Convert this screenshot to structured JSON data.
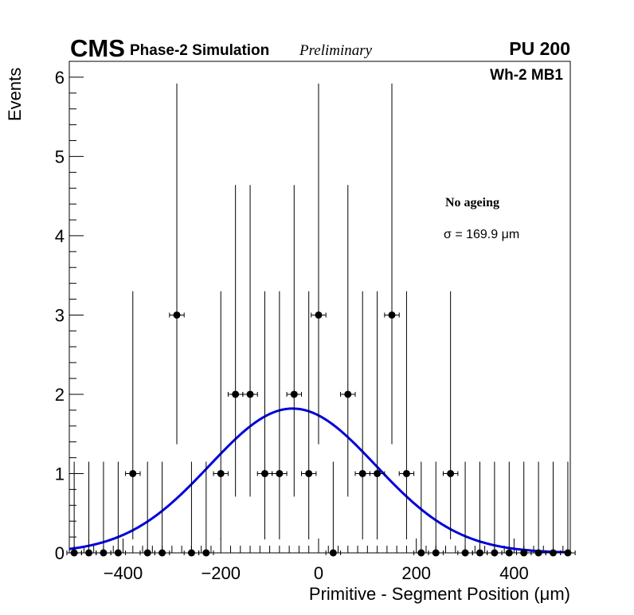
{
  "header": {
    "experiment": "CMS",
    "subtitle": "Phase-2 Simulation",
    "status": "Preliminary",
    "pileup": "PU 200",
    "chamber": "Wh-2 MB1"
  },
  "legend": {
    "condition": "No ageing",
    "sigma_label": "σ = 169.9 μm"
  },
  "chart_data": {
    "type": "scatter",
    "title": "",
    "xlabel": "Primitive - Segment Position (μm)",
    "ylabel": "Events",
    "xlim": [
      -510,
      515
    ],
    "ylim": [
      0,
      6.2
    ],
    "xticks": [
      -400,
      -200,
      0,
      200,
      400
    ],
    "xtick_labels": [
      "−400",
      "−200",
      "0",
      "200",
      "400"
    ],
    "yticks": [
      0,
      1,
      2,
      3,
      4,
      5,
      6
    ],
    "ytick_labels": [
      "0",
      "1",
      "2",
      "3",
      "4",
      "5",
      "6"
    ],
    "bin_halfwidth": 15,
    "series": [
      {
        "name": "No ageing",
        "x": [
          -500,
          -470,
          -440,
          -410,
          -380,
          -350,
          -320,
          -290,
          -260,
          -230,
          -200,
          -170,
          -140,
          -110,
          -80,
          -50,
          -20,
          0,
          30,
          60,
          90,
          120,
          150,
          180,
          210,
          240,
          270,
          300,
          330,
          360,
          390,
          420,
          450,
          480,
          510
        ],
        "y": [
          0,
          0,
          0,
          0,
          1,
          0,
          0,
          3,
          0,
          0,
          1,
          2,
          2,
          1,
          1,
          2,
          1,
          3,
          0,
          2,
          1,
          1,
          3,
          1,
          0,
          0,
          1,
          0,
          0,
          0,
          0,
          0,
          0,
          0,
          0
        ],
        "err_up": [
          1.15,
          1.15,
          1.15,
          1.15,
          2.3,
          1.15,
          1.15,
          2.92,
          1.15,
          1.15,
          2.3,
          2.64,
          2.64,
          2.3,
          2.3,
          2.64,
          2.3,
          2.92,
          1.15,
          2.64,
          2.3,
          2.3,
          2.92,
          2.3,
          1.15,
          1.15,
          2.3,
          1.15,
          1.15,
          1.15,
          1.15,
          1.15,
          1.15,
          1.15,
          1.15
        ],
        "err_down": [
          0,
          0,
          0,
          0,
          0.83,
          0,
          0,
          1.63,
          0,
          0,
          0.83,
          1.29,
          1.29,
          0.83,
          0.83,
          1.29,
          0.83,
          1.63,
          0,
          1.29,
          0.83,
          0.83,
          1.63,
          0.83,
          0,
          0,
          0.83,
          0,
          0,
          0,
          0,
          0,
          0,
          0,
          0
        ]
      }
    ],
    "fit": {
      "name": "Gaussian fit",
      "amplitude": 1.82,
      "mean": -53,
      "sigma": 169.9,
      "color": "#0000dd"
    }
  }
}
